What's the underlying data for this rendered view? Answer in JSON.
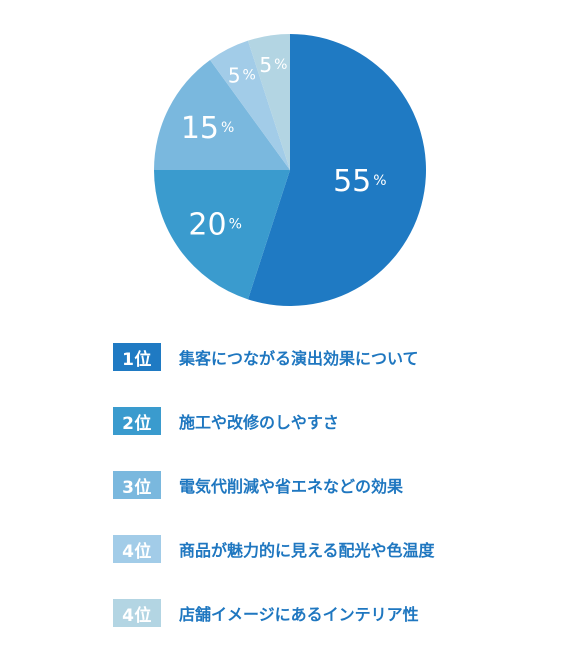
{
  "chart_data": {
    "type": "pie",
    "slices": [
      {
        "value": 55,
        "label": "55",
        "unit": "%",
        "color": "#1f7ac3"
      },
      {
        "value": 20,
        "label": "20",
        "unit": "%",
        "color": "#3a9bce"
      },
      {
        "value": 15,
        "label": "15",
        "unit": "%",
        "color": "#7ab8de"
      },
      {
        "value": 5,
        "label": "5",
        "unit": "%",
        "color": "#a2cce8"
      },
      {
        "value": 5,
        "label": "5",
        "unit": "%",
        "color": "#b3d5e3"
      }
    ],
    "start_angle_deg": 0,
    "direction": "clockwise"
  },
  "legend": {
    "items": [
      {
        "rank": "1位",
        "text": "集客につながる演出効果について",
        "color": "#1f7ac3"
      },
      {
        "rank": "2位",
        "text": "施工や改修のしやすさ",
        "color": "#3a9bce"
      },
      {
        "rank": "3位",
        "text": "電気代削減や省エネなどの効果",
        "color": "#7ab8de"
      },
      {
        "rank": "4位",
        "text": "商品が魅力的に見える配光や色温度",
        "color": "#a2cce8"
      },
      {
        "rank": "4位",
        "text": "店舗イメージにあるインテリア性",
        "color": "#b3d5e3"
      }
    ]
  }
}
